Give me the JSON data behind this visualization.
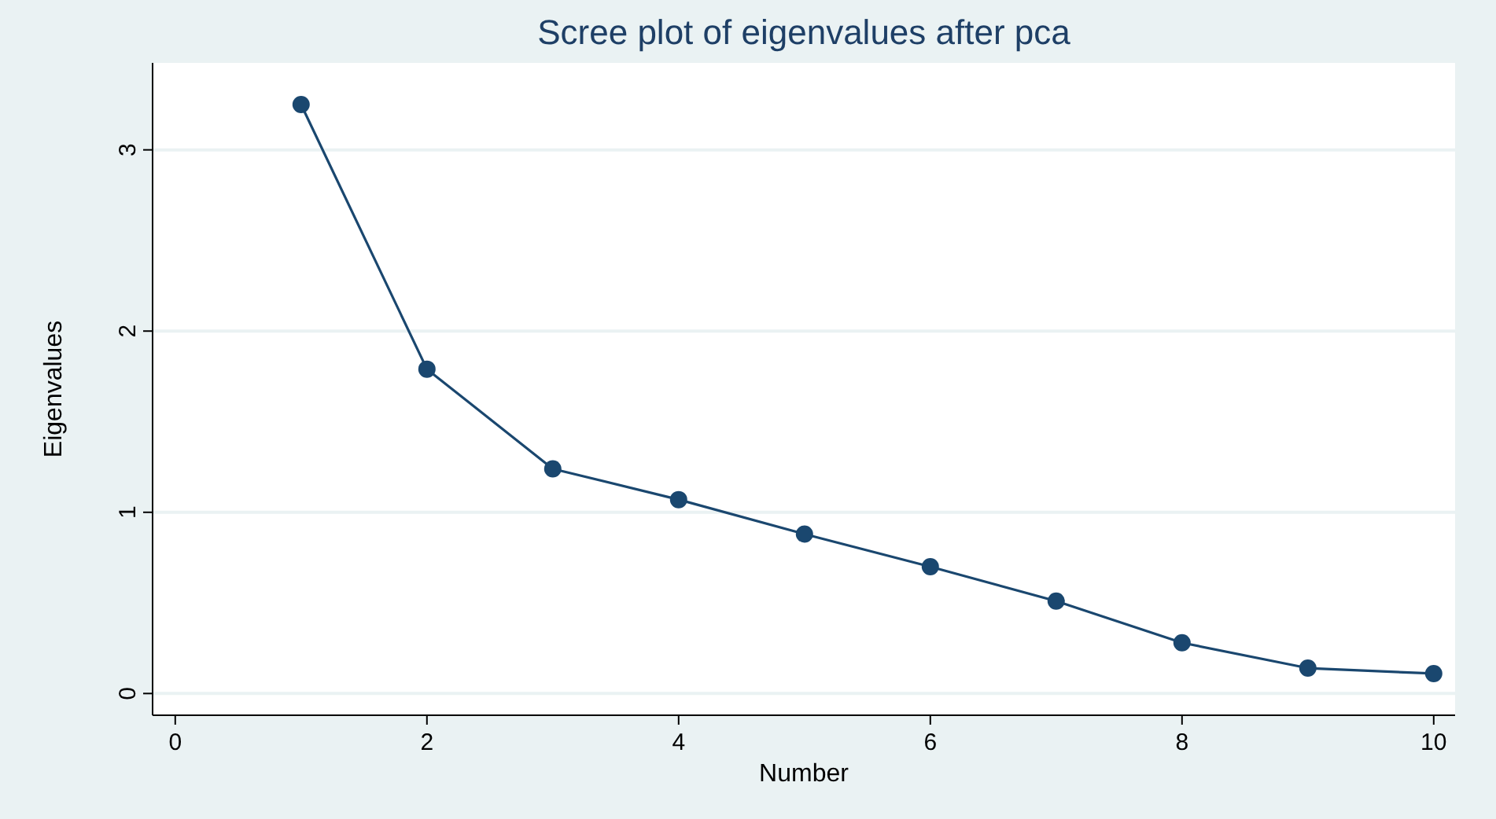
{
  "chart_data": {
    "type": "line",
    "title": "Scree plot of eigenvalues after pca",
    "xlabel": "Number",
    "ylabel": "Eigenvalues",
    "x": [
      1,
      2,
      3,
      4,
      5,
      6,
      7,
      8,
      9,
      10
    ],
    "series": [
      {
        "color": "#1a476f",
        "values": [
          3.25,
          1.79,
          1.24,
          1.07,
          0.88,
          0.7,
          0.51,
          0.28,
          0.14,
          0.11
        ]
      }
    ],
    "xlim": [
      -0.18,
      10.17
    ],
    "ylim": [
      -0.12,
      3.48
    ],
    "xticks": [
      0,
      2,
      4,
      6,
      8,
      10
    ],
    "yticks": [
      0,
      1,
      2,
      3
    ],
    "grid": "y",
    "marker": "circle",
    "line_style": "solid"
  }
}
